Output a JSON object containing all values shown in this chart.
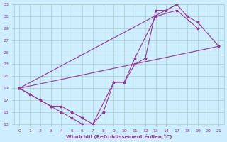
{
  "background_color": "#cceeff",
  "grid_color": "#aacccc",
  "line_color": "#993399",
  "xlim": [
    -0.5,
    21.5
  ],
  "ylim": [
    13,
    33
  ],
  "xticks": [
    0,
    1,
    2,
    3,
    4,
    5,
    6,
    7,
    8,
    9,
    10,
    11,
    12,
    13,
    14,
    17,
    18,
    19,
    20,
    21
  ],
  "yticks": [
    13,
    15,
    17,
    19,
    21,
    23,
    25,
    27,
    29,
    31,
    33
  ],
  "xlabel": "Windchill (Refroidissement éolien,°C)",
  "curves": [
    {
      "x": [
        0,
        1,
        2,
        3,
        4,
        5,
        6,
        7,
        8,
        9,
        10,
        11,
        12,
        13,
        14,
        17
      ],
      "y": [
        19,
        18,
        17,
        16,
        15,
        14,
        13,
        13,
        15,
        20,
        20,
        23,
        24,
        32,
        32,
        33
      ]
    },
    {
      "x": [
        0,
        3,
        4,
        5,
        6,
        7,
        9,
        10,
        11,
        13,
        17,
        19
      ],
      "y": [
        19,
        16,
        16,
        15,
        14,
        13,
        20,
        20,
        24,
        31,
        32,
        29
      ]
    },
    {
      "x": [
        0,
        17,
        18,
        19,
        21
      ],
      "y": [
        19,
        33,
        31,
        30,
        26
      ]
    },
    {
      "x": [
        0,
        21
      ],
      "y": [
        19,
        26
      ]
    }
  ]
}
